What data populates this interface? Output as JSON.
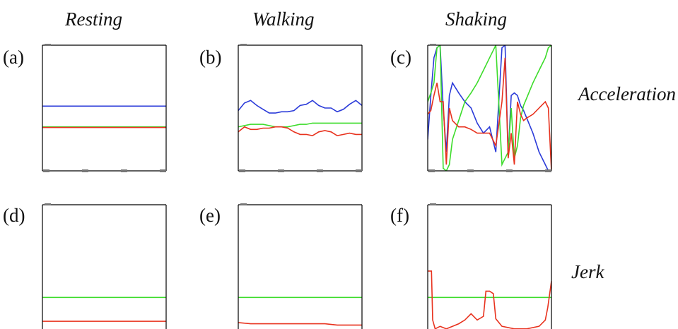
{
  "figure": {
    "column_titles": [
      "Resting",
      "Walking",
      "Shaking"
    ],
    "row_titles": [
      "Acceleration",
      "Jerk"
    ],
    "panel_labels": [
      "(a)",
      "(b)",
      "(c)",
      "(d)",
      "(e)",
      "(f)"
    ]
  },
  "colors": {
    "blue": "#2b3bd9",
    "green": "#3ddc2b",
    "red": "#e8321e",
    "axis": "#000000",
    "tick": "#777777"
  },
  "chart_data": [
    {
      "type": "line",
      "title": "Resting",
      "panel": "(a)",
      "row": "Acceleration",
      "ylim": [
        0,
        1
      ],
      "grid": false,
      "x": [
        0,
        0.25,
        0.5,
        0.75,
        1
      ],
      "series": [
        {
          "color": "blue",
          "values": [
            0.515,
            0.515,
            0.515,
            0.515,
            0.515
          ]
        },
        {
          "color": "green",
          "values": [
            0.35,
            0.35,
            0.35,
            0.35,
            0.35
          ]
        },
        {
          "color": "red",
          "values": [
            0.345,
            0.345,
            0.345,
            0.345,
            0.345
          ]
        }
      ]
    },
    {
      "type": "line",
      "title": "Walking",
      "panel": "(b)",
      "row": "Acceleration",
      "ylim": [
        0,
        1
      ],
      "grid": false,
      "x": [
        0,
        0.05,
        0.1,
        0.15,
        0.2,
        0.25,
        0.3,
        0.35,
        0.4,
        0.45,
        0.5,
        0.55,
        0.6,
        0.65,
        0.7,
        0.75,
        0.8,
        0.85,
        0.9,
        0.95,
        1
      ],
      "series": [
        {
          "color": "blue",
          "values": [
            0.48,
            0.54,
            0.56,
            0.52,
            0.49,
            0.46,
            0.46,
            0.47,
            0.47,
            0.48,
            0.52,
            0.53,
            0.56,
            0.52,
            0.5,
            0.5,
            0.47,
            0.49,
            0.53,
            0.56,
            0.52
          ]
        },
        {
          "color": "green",
          "values": [
            0.35,
            0.36,
            0.37,
            0.37,
            0.37,
            0.36,
            0.35,
            0.35,
            0.35,
            0.36,
            0.37,
            0.37,
            0.38,
            0.38,
            0.38,
            0.38,
            0.38,
            0.38,
            0.38,
            0.38,
            0.38
          ]
        },
        {
          "color": "red",
          "values": [
            0.31,
            0.35,
            0.33,
            0.33,
            0.34,
            0.34,
            0.35,
            0.35,
            0.34,
            0.31,
            0.29,
            0.29,
            0.28,
            0.31,
            0.32,
            0.31,
            0.28,
            0.29,
            0.3,
            0.29,
            0.29
          ]
        }
      ]
    },
    {
      "type": "line",
      "title": "Shaking",
      "panel": "(c)",
      "row": "Acceleration",
      "ylim": [
        0,
        1
      ],
      "grid": false,
      "x": [
        0,
        0.025,
        0.05,
        0.075,
        0.1,
        0.125,
        0.15,
        0.175,
        0.2,
        0.25,
        0.3,
        0.35,
        0.4,
        0.45,
        0.5,
        0.55,
        0.6,
        0.625,
        0.65,
        0.675,
        0.7,
        0.725,
        0.75,
        0.775,
        0.8,
        0.85,
        0.9,
        0.95,
        0.975,
        1
      ],
      "series": [
        {
          "color": "blue",
          "values": [
            0.25,
            0.6,
            0.9,
            0.98,
            1.0,
            0.5,
            0.15,
            0.6,
            0.7,
            0.62,
            0.55,
            0.5,
            0.38,
            0.3,
            0.35,
            0.15,
            0.98,
            1.0,
            0.12,
            0.6,
            0.62,
            0.6,
            0.52,
            0.48,
            0.42,
            0.3,
            0.15,
            0.05,
            0.0,
            0.0
          ]
        },
        {
          "color": "green",
          "values": [
            0.55,
            0.62,
            0.7,
            0.98,
            1.0,
            0.02,
            0.0,
            0.05,
            0.25,
            0.4,
            0.55,
            0.62,
            0.7,
            0.8,
            0.9,
            1.0,
            0.05,
            0.1,
            0.15,
            0.5,
            0.1,
            0.2,
            0.42,
            0.52,
            0.58,
            0.7,
            0.8,
            0.9,
            0.98,
            1.0
          ]
        },
        {
          "color": "red",
          "values": [
            0.45,
            0.48,
            0.6,
            0.7,
            0.55,
            0.55,
            0.05,
            0.5,
            0.4,
            0.35,
            0.35,
            0.33,
            0.3,
            0.3,
            0.3,
            0.2,
            0.55,
            0.9,
            0.1,
            0.3,
            0.05,
            0.55,
            0.45,
            0.4,
            0.42,
            0.45,
            0.5,
            0.55,
            0.5,
            0.0
          ]
        }
      ]
    },
    {
      "type": "line",
      "title": "Resting",
      "panel": "(d)",
      "row": "Jerk",
      "ylim": [
        0,
        1
      ],
      "grid": false,
      "x": [
        0,
        1
      ],
      "series": [
        {
          "color": "green",
          "values": [
            0.33,
            0.33
          ]
        },
        {
          "color": "red",
          "values": [
            0.14,
            0.14
          ]
        }
      ]
    },
    {
      "type": "line",
      "title": "Walking",
      "panel": "(e)",
      "row": "Jerk",
      "ylim": [
        0,
        1
      ],
      "grid": false,
      "x": [
        0,
        0.1,
        0.2,
        0.3,
        0.4,
        0.5,
        0.6,
        0.7,
        0.8,
        0.9,
        1
      ],
      "series": [
        {
          "color": "green",
          "values": [
            0.33,
            0.33,
            0.33,
            0.33,
            0.33,
            0.33,
            0.33,
            0.33,
            0.33,
            0.33,
            0.33
          ]
        },
        {
          "color": "red",
          "values": [
            0.13,
            0.12,
            0.12,
            0.12,
            0.12,
            0.12,
            0.12,
            0.12,
            0.11,
            0.11,
            0.11
          ]
        }
      ]
    },
    {
      "type": "line",
      "title": "Shaking",
      "panel": "(f)",
      "row": "Jerk",
      "ylim": [
        0,
        1
      ],
      "grid": false,
      "x": [
        0,
        0.03,
        0.04,
        0.06,
        0.1,
        0.15,
        0.2,
        0.25,
        0.3,
        0.35,
        0.4,
        0.45,
        0.47,
        0.5,
        0.53,
        0.55,
        0.6,
        0.7,
        0.8,
        0.9,
        0.95,
        0.97,
        1
      ],
      "series": [
        {
          "color": "green",
          "values": [
            0.33,
            0.33,
            0.33,
            0.33,
            0.33,
            0.33,
            0.33,
            0.33,
            0.33,
            0.33,
            0.33,
            0.33,
            0.33,
            0.33,
            0.33,
            0.33,
            0.33,
            0.33,
            0.33,
            0.33,
            0.33,
            0.33,
            0.33
          ]
        },
        {
          "color": "red",
          "values": [
            0.54,
            0.54,
            0.15,
            0.08,
            0.1,
            0.08,
            0.1,
            0.12,
            0.15,
            0.2,
            0.15,
            0.18,
            0.38,
            0.38,
            0.36,
            0.16,
            0.1,
            0.08,
            0.08,
            0.1,
            0.15,
            0.25,
            0.46
          ]
        }
      ]
    }
  ]
}
